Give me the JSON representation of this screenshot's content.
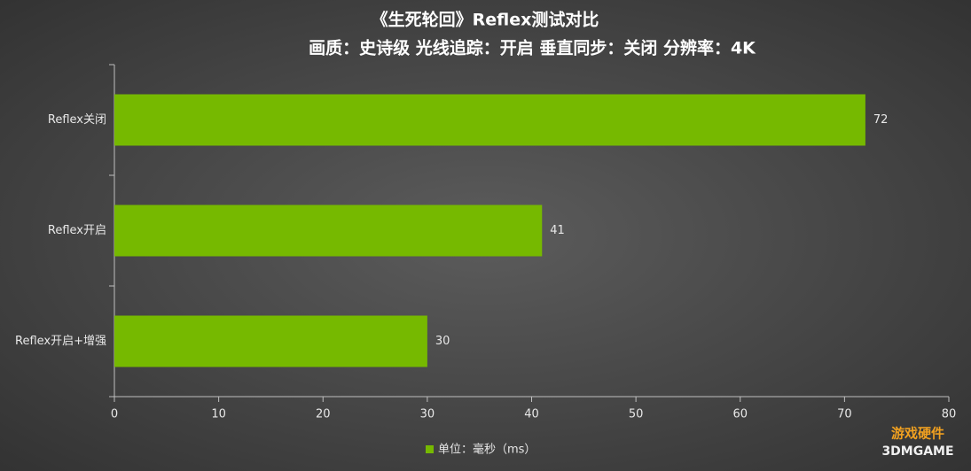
{
  "chart_data": {
    "type": "bar",
    "orientation": "horizontal",
    "title": "《生死轮回》Reflex测试对比",
    "subtitle": "画质：史诗级 光线追踪：开启  垂直同步：关闭  分辨率：4K",
    "categories": [
      "Reflex关闭",
      "Reflex开启",
      "Reflex开启+增强"
    ],
    "series": [
      {
        "name": "单位：毫秒（ms）",
        "color": "#76b900",
        "values": [
          72,
          41,
          30
        ]
      }
    ],
    "xlim": [
      0,
      80
    ],
    "xticks": [
      0,
      10,
      20,
      30,
      40,
      50,
      60,
      70,
      80
    ],
    "grid": false,
    "legend": "bottom",
    "watermark": [
      "游戏硬件",
      "3DMGAME"
    ]
  }
}
